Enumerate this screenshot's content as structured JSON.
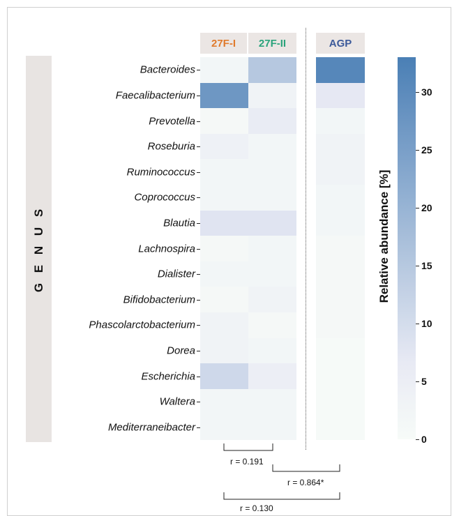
{
  "axis_label_rows": "G E N U S",
  "colorbar_title": "Relative abundance [%]",
  "colors": {
    "col_27F_I": "#e07a2c",
    "col_27F_II": "#2aa37b",
    "col_AGP": "#3c5a9a",
    "cmap_low": "#f7fbf8",
    "cmap_mid": "#e8eaf4",
    "cmap_high": "#4a7fb5"
  },
  "chart_data": {
    "type": "heatmap",
    "columns": [
      "27F-I",
      "27F-II",
      "AGP"
    ],
    "rows": [
      "Bacteroides",
      "Faecalibacterium",
      "Prevotella",
      "Roseburia",
      "Ruminococcus",
      "Coprococcus",
      "Blautia",
      "Lachnospira",
      "Dialister",
      "Bifidobacterium",
      "Phascolarctobacterium",
      "Dorea",
      "Escherichia",
      "Waltera",
      "Mediterraneibacter"
    ],
    "values": [
      [
        2,
        15,
        31
      ],
      [
        27,
        3,
        7
      ],
      [
        1,
        6,
        2
      ],
      [
        4,
        2,
        3
      ],
      [
        2,
        2,
        3
      ],
      [
        2,
        2,
        2
      ],
      [
        8,
        8,
        2
      ],
      [
        1,
        2,
        1
      ],
      [
        2,
        2,
        1
      ],
      [
        1,
        3,
        1
      ],
      [
        3,
        1,
        1
      ],
      [
        3,
        2,
        0.5
      ],
      [
        11,
        5,
        0.5
      ],
      [
        2,
        2,
        0.5
      ],
      [
        2,
        2,
        0.5
      ]
    ],
    "value_range": [
      0,
      33
    ],
    "colorbar_ticks": [
      0,
      5,
      10,
      15,
      20,
      25,
      30
    ],
    "correlations": [
      {
        "between": [
          "27F-I",
          "27F-II"
        ],
        "label": "r = 0.191"
      },
      {
        "between": [
          "27F-II",
          "AGP"
        ],
        "label": "r = 0.864*"
      },
      {
        "between": [
          "27F-I",
          "AGP"
        ],
        "label": "r = 0.130"
      }
    ]
  }
}
